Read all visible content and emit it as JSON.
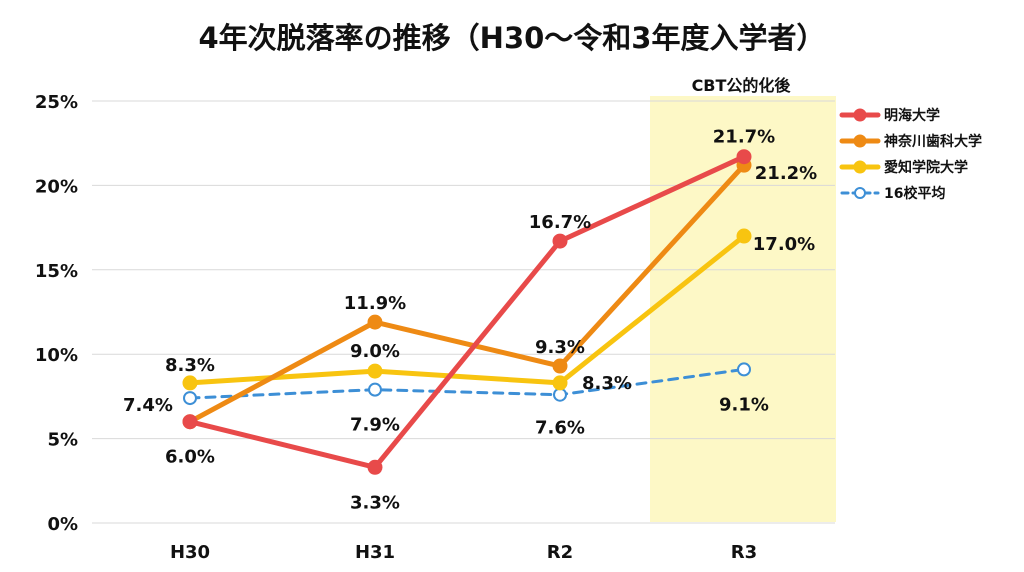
{
  "chart_data": {
    "type": "line",
    "title": "4年次脱落率の推移（H30〜令和3年度入学者）",
    "categories": [
      "H30",
      "H31",
      "R2",
      "R3"
    ],
    "xlabel": "",
    "ylabel": "",
    "ylim": [
      0,
      25
    ],
    "yticks": [
      0,
      5,
      10,
      15,
      20,
      25
    ],
    "ytick_suffix": "%",
    "grid": true,
    "legend_position": "top-right",
    "annotation": {
      "text": "CBT公的化後",
      "category": "R3",
      "highlight_color": "#fdf8c6"
    },
    "series": [
      {
        "name": "明海大学",
        "values": [
          6.0,
          3.3,
          16.7,
          21.7
        ],
        "labels": [
          "",
          "3.3%",
          "16.7%",
          "21.7%"
        ],
        "color": "#e84a4a",
        "dashed": false,
        "hollow": false
      },
      {
        "name": "神奈川歯科大学",
        "values": [
          6.0,
          11.9,
          9.3,
          21.2
        ],
        "labels": [
          "6.0%",
          "11.9%",
          "9.3%",
          "21.2%"
        ],
        "color": "#ee8a14",
        "dashed": false,
        "hollow": false
      },
      {
        "name": "愛知学院大学",
        "values": [
          8.3,
          9.0,
          8.3,
          17.0
        ],
        "labels": [
          "8.3%",
          "9.0%",
          "8.3%",
          "17.0%"
        ],
        "color": "#f8c410",
        "dashed": false,
        "hollow": false
      },
      {
        "name": "16校平均",
        "values": [
          7.4,
          7.9,
          7.6,
          9.1
        ],
        "labels": [
          "7.4%",
          "7.9%",
          "7.6%",
          "9.1%"
        ],
        "color": "#3d8fd6",
        "dashed": true,
        "hollow": true
      }
    ]
  }
}
